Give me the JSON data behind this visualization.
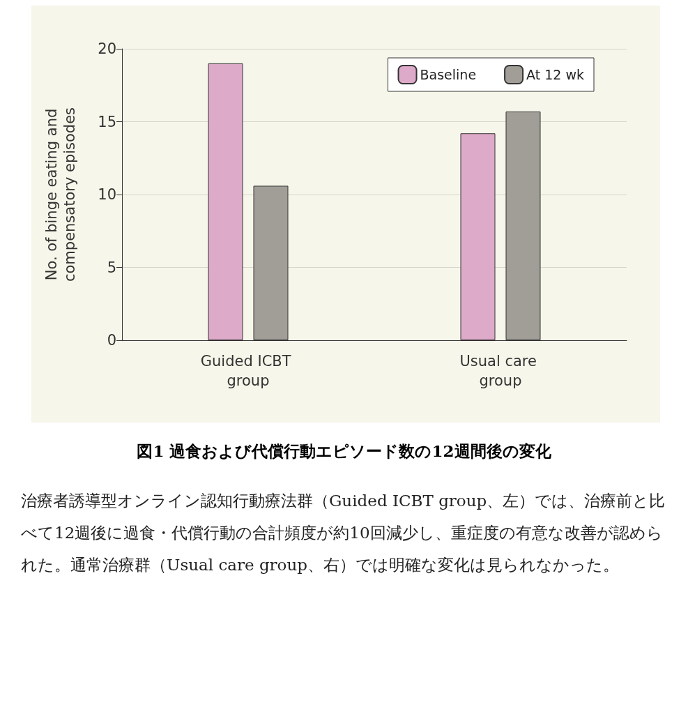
{
  "chart_data": {
    "type": "bar",
    "title": "図1 過食および代償行動エピソード数の12週間後の変化",
    "ylabel": "No. of binge eating and compensatory episodes",
    "categories": [
      "Guided ICBT group",
      "Usual care group"
    ],
    "series": [
      {
        "name": "Baseline",
        "color": "#deaac9",
        "values": [
          19.0,
          14.2
        ]
      },
      {
        "name": "At 12 wk",
        "color": "#a19e98",
        "values": [
          10.6,
          15.7
        ]
      }
    ],
    "ylim": [
      0,
      20
    ],
    "yticks": [
      0,
      5,
      10,
      15,
      20
    ],
    "grid": "y",
    "legend": "top right",
    "annotations": [
      "治療者誘導型オンライン認知行動療法群（Guided ICBT group、左）では、治療前と比べて12週後に過食・代償行動の合計頻度が約10回減少し、重症度の有意な改善が認められた。通常治療群（Usual care group、右）では明確な変化は見られなかった。"
    ]
  }
}
